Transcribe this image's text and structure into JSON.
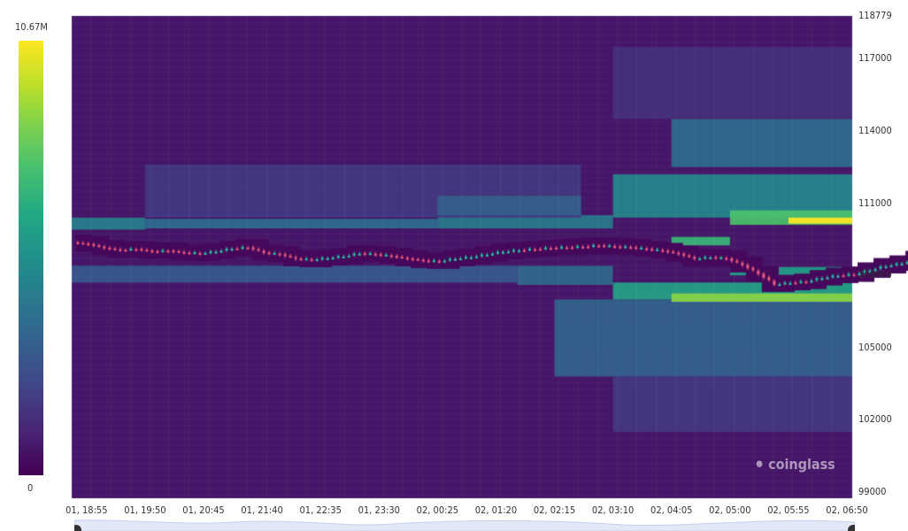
{
  "chart_data": {
    "type": "heatmap",
    "subtype": "liquidation heatmap with candlestick price overlay",
    "colorscale": "viridis",
    "colorbar": {
      "max_label": "10.67M",
      "min_label": "0",
      "min": 0,
      "max": 10.67
    },
    "ylim": [
      98740,
      118779
    ],
    "y_ticks": [
      "118779",
      "117000",
      "114000",
      "111000",
      "108000",
      "105000",
      "102000",
      "99000"
    ],
    "x_ticks": [
      "01, 18:55",
      "01, 19:50",
      "01, 20:45",
      "01, 21:40",
      "01, 22:35",
      "01, 23:30",
      "02, 00:25",
      "02, 01:20",
      "02, 02:15",
      "02, 03:10",
      "02, 04:05",
      "02, 05:00",
      "02, 05:55",
      "02, 06:50"
    ],
    "x_range": [
      "01, 18:41",
      "02, 06:55"
    ],
    "candle_interval_min": 15,
    "candle_start": "01, 18:45",
    "closes": [
      109300,
      109150,
      109060,
      109100,
      109000,
      109030,
      108950,
      108920,
      109000,
      109120,
      109170,
      108950,
      108880,
      108700,
      108660,
      108730,
      108800,
      108920,
      108880,
      108810,
      108700,
      108620,
      108590,
      108700,
      108770,
      108880,
      108990,
      109050,
      109100,
      109150,
      109170,
      109200,
      109250,
      109200,
      109170,
      109100,
      109030,
      108900,
      108700,
      108760,
      108700,
      108440,
      108070,
      107630,
      107700,
      107750,
      107900,
      108000,
      108050,
      108220,
      108400,
      108510,
      108700,
      108810,
      109170,
      109120,
      109080,
      109000,
      108950,
      108980,
      109000,
      109050,
      109100
    ],
    "bands": [
      {
        "from": "01, 18:41",
        "to": "01, 19:50",
        "lo": 109900,
        "hi": 110400,
        "value": 4.6
      },
      {
        "from": "01, 19:50",
        "to": "02, 00:25",
        "lo": 109950,
        "hi": 110350,
        "value": 3.8
      },
      {
        "from": "02, 00:25",
        "to": "02, 03:10",
        "lo": 109950,
        "hi": 110500,
        "value": 4.4
      },
      {
        "from": "01, 19:50",
        "to": "02, 02:40",
        "lo": 110400,
        "hi": 112600,
        "value": 1.8
      },
      {
        "from": "02, 00:25",
        "to": "02, 02:40",
        "lo": 110500,
        "hi": 111300,
        "value": 3.2
      },
      {
        "from": "01, 18:41",
        "to": "02, 01:40",
        "lo": 107700,
        "hi": 108400,
        "value": 3.0
      },
      {
        "from": "02, 01:40",
        "to": "02, 03:10",
        "lo": 107600,
        "hi": 108400,
        "value": 3.6
      },
      {
        "from": "02, 02:15",
        "to": "02, 06:55",
        "lo": 103800,
        "hi": 107000,
        "value": 3.4
      },
      {
        "from": "02, 03:10",
        "to": "02, 06:55",
        "lo": 110400,
        "hi": 112200,
        "value": 5.0
      },
      {
        "from": "02, 04:05",
        "to": "02, 06:55",
        "lo": 112500,
        "hi": 114500,
        "value": 3.8
      },
      {
        "from": "02, 03:10",
        "to": "02, 06:55",
        "lo": 107000,
        "hi": 107700,
        "value": 6.2
      },
      {
        "from": "02, 04:05",
        "to": "02, 06:55",
        "lo": 106900,
        "hi": 107250,
        "value": 8.8
      },
      {
        "from": "02, 04:05",
        "to": "02, 05:00",
        "lo": 109250,
        "hi": 109600,
        "value": 7.2
      },
      {
        "from": "02, 05:00",
        "to": "02, 06:55",
        "lo": 110100,
        "hi": 110700,
        "value": 7.6
      },
      {
        "from": "02, 05:55",
        "to": "02, 06:55",
        "lo": 110150,
        "hi": 110400,
        "value": 10.67
      },
      {
        "from": "02, 05:00",
        "to": "02, 06:55",
        "lo": 108000,
        "hi": 108350,
        "value": 6.0
      },
      {
        "from": "02, 03:10",
        "to": "02, 06:55",
        "lo": 101500,
        "hi": 103800,
        "value": 1.8
      },
      {
        "from": "02, 03:10",
        "to": "02, 06:55",
        "lo": 114500,
        "hi": 117500,
        "value": 1.5
      }
    ],
    "background_value": 0.6,
    "up_color": "#26c6a6",
    "down_color": "#ef5a7a",
    "watermark": "coinglass"
  }
}
